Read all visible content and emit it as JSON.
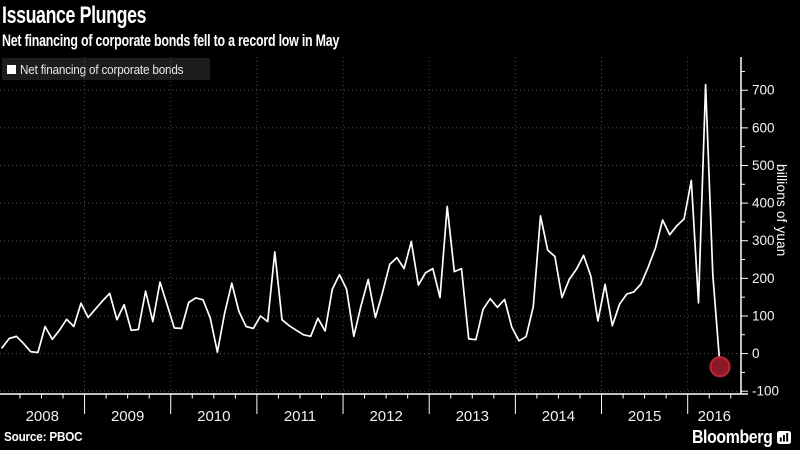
{
  "header": {
    "title": "Issuance Plunges",
    "subtitle": "Net financing of corporate bonds fell to a record low in May"
  },
  "legend": {
    "label": "Net financing of corporate bonds",
    "swatch_color": "#ffffff"
  },
  "footer": {
    "source": "Source: PBOC",
    "brand": "Bloomberg"
  },
  "chart_data": {
    "type": "line",
    "title": "Issuance Plunges",
    "series_name": "Net financing of corporate bonds",
    "ylabel": "billions of yuan",
    "y_ticks": [
      -100,
      0,
      100,
      200,
      300,
      400,
      500,
      600,
      700
    ],
    "ylim": [
      -100,
      760
    ],
    "x_tick_years": [
      2008,
      2009,
      2010,
      2011,
      2012,
      2013,
      2014,
      2015,
      2016
    ],
    "x_start": "2008-01",
    "x_end": "2016-05",
    "frequency": "monthly",
    "grid": "dotted",
    "legend_position": "top-left",
    "line_color": "#ffffff",
    "background_color": "#000000",
    "endpoint_marker": {
      "shape": "circle",
      "fill": "#8c1a26",
      "stroke": "#bb2433",
      "value": -35,
      "note": "record low in May 2016"
    },
    "values": [
      15,
      40,
      46,
      27,
      5,
      3,
      72,
      38,
      62,
      91,
      72,
      134,
      96,
      118,
      140,
      160,
      90,
      130,
      62,
      64,
      166,
      85,
      190,
      130,
      68,
      67,
      136,
      148,
      143,
      95,
      4,
      107,
      187,
      112,
      72,
      67,
      100,
      85,
      270,
      90,
      74,
      62,
      50,
      46,
      94,
      60,
      171,
      210,
      171,
      46,
      127,
      197,
      96,
      162,
      237,
      255,
      226,
      298,
      182,
      215,
      226,
      149,
      391,
      218,
      226,
      39,
      37,
      118,
      146,
      123,
      144,
      70,
      34,
      45,
      125,
      366,
      275,
      258,
      149,
      197,
      224,
      261,
      206,
      87,
      184,
      74,
      131,
      158,
      164,
      185,
      230,
      280,
      355,
      316,
      340,
      358,
      460,
      135,
      715,
      210,
      -35
    ]
  }
}
